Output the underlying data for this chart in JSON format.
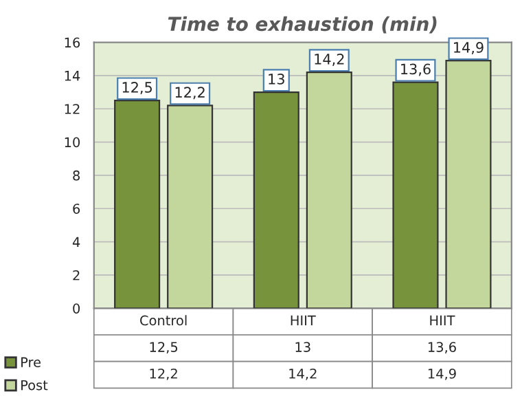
{
  "chart_data": {
    "type": "bar",
    "title": "Time to exhaustion (min)",
    "categories": [
      "Control",
      "HIIT",
      "HIIT"
    ],
    "series": [
      {
        "name": "Pre",
        "color": "#77933c",
        "values": [
          12.5,
          13,
          13.6
        ],
        "value_labels": [
          "12,5",
          "13",
          "13,6"
        ]
      },
      {
        "name": "Post",
        "color": "#c3d69b",
        "values": [
          12.2,
          14.2,
          14.9
        ],
        "value_labels": [
          "12,2",
          "14,2",
          "14,9"
        ]
      }
    ],
    "ylim": [
      0,
      16
    ],
    "yticks": [
      0,
      2,
      4,
      6,
      8,
      10,
      12,
      14,
      16
    ],
    "grid": "y",
    "legend": "bottom left"
  }
}
